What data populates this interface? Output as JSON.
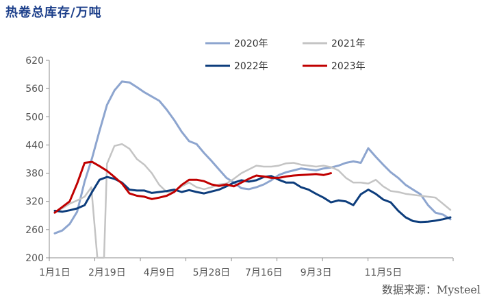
{
  "title": "热卷总库存/万吨",
  "source": "数据来源：Mysteel",
  "chart_data": {
    "type": "line",
    "ylim": [
      200,
      620
    ],
    "yticks": [
      200,
      260,
      320,
      380,
      440,
      500,
      560,
      620
    ],
    "xlim": [
      1,
      54
    ],
    "xticks": [
      {
        "label": "1月1日",
        "week": 1
      },
      {
        "label": "2月19日",
        "week": 8
      },
      {
        "label": "4月9日",
        "week": 15
      },
      {
        "label": "5月28日",
        "week": 22
      },
      {
        "label": "7月16日",
        "week": 29
      },
      {
        "label": "9月3日",
        "week": 36
      },
      {
        "label": "11月5日",
        "week": 45
      }
    ],
    "legend_position": "top-right",
    "series": [
      {
        "name": "2020年",
        "color": "#8da5cf",
        "x": [
          1,
          2,
          3,
          4,
          5,
          6,
          7,
          8,
          9,
          10,
          11,
          12,
          13,
          14,
          15,
          16,
          17,
          18,
          19,
          20,
          21,
          22,
          23,
          24,
          25,
          26,
          27,
          28,
          29,
          30,
          31,
          32,
          33,
          34,
          35,
          36,
          37,
          38,
          39,
          40,
          41,
          42,
          43,
          44,
          45,
          46,
          47,
          48,
          49,
          50,
          51,
          52,
          53,
          54
        ],
        "values": [
          252,
          258,
          272,
          298,
          362,
          412,
          470,
          525,
          556,
          575,
          573,
          563,
          552,
          543,
          534,
          515,
          493,
          468,
          448,
          442,
          423,
          406,
          388,
          370,
          360,
          348,
          346,
          350,
          356,
          365,
          376,
          382,
          386,
          390,
          388,
          386,
          390,
          392,
          396,
          402,
          405,
          402,
          433,
          415,
          398,
          382,
          370,
          355,
          345,
          335,
          312,
          296,
          292,
          282
        ]
      },
      {
        "name": "2021年",
        "color": "#c4c4c4",
        "x": [
          1,
          2,
          3,
          4,
          5,
          5.9,
          6.7,
          7.6,
          8,
          9,
          10,
          11,
          12,
          13,
          14,
          15,
          16,
          17,
          18,
          19,
          20,
          21,
          22,
          23,
          24,
          25,
          26,
          27,
          28,
          29,
          30,
          31,
          32,
          33,
          34,
          35,
          36,
          37,
          38,
          39,
          40,
          41,
          42,
          43,
          44,
          45,
          46,
          47,
          48,
          49,
          50,
          51,
          52,
          53,
          54
        ],
        "values": [
          298,
          305,
          315,
          322,
          330,
          350,
          200,
          200,
          400,
          438,
          442,
          432,
          410,
          398,
          380,
          355,
          340,
          342,
          352,
          360,
          350,
          346,
          350,
          356,
          358,
          368,
          380,
          388,
          396,
          394,
          394,
          396,
          401,
          402,
          398,
          396,
          394,
          396,
          393,
          386,
          370,
          360,
          360,
          358,
          366,
          352,
          342,
          340,
          336,
          334,
          332,
          330,
          328,
          315,
          302
        ]
      },
      {
        "name": "2022年",
        "color": "#0d3d7c",
        "x": [
          1,
          2,
          3,
          4,
          5,
          6,
          7,
          8,
          9,
          10,
          11,
          12,
          13,
          14,
          15,
          16,
          17,
          18,
          19,
          20,
          21,
          22,
          23,
          24,
          25,
          26,
          27,
          28,
          29,
          30,
          31,
          32,
          33,
          34,
          35,
          36,
          37,
          38,
          39,
          40,
          41,
          42,
          43,
          44,
          45,
          46,
          47,
          48,
          49,
          50,
          51,
          52,
          53,
          54
        ],
        "values": [
          300,
          298,
          301,
          305,
          312,
          340,
          366,
          372,
          368,
          360,
          345,
          343,
          343,
          338,
          340,
          342,
          345,
          340,
          344,
          340,
          337,
          341,
          345,
          352,
          360,
          365,
          362,
          365,
          372,
          374,
          366,
          360,
          360,
          350,
          345,
          336,
          328,
          318,
          322,
          320,
          312,
          335,
          345,
          336,
          324,
          318,
          300,
          286,
          278,
          276,
          277,
          279,
          282,
          286
        ]
      },
      {
        "name": "2023年",
        "color": "#c00000",
        "x": [
          1,
          2,
          3,
          4,
          5,
          6,
          7,
          8,
          9,
          10,
          11,
          12,
          13,
          14,
          15,
          16,
          17,
          18,
          19,
          20,
          21,
          22,
          23,
          24,
          25,
          26,
          27,
          28,
          29,
          30,
          31,
          32,
          33,
          34,
          35,
          36,
          37,
          38
        ],
        "values": [
          296,
          308,
          320,
          358,
          402,
          404,
          395,
          385,
          372,
          358,
          337,
          332,
          330,
          325,
          328,
          332,
          340,
          355,
          366,
          366,
          363,
          356,
          353,
          356,
          352,
          360,
          368,
          375,
          373,
          370,
          370,
          373,
          375,
          376,
          377,
          378,
          376,
          380
        ]
      }
    ]
  }
}
